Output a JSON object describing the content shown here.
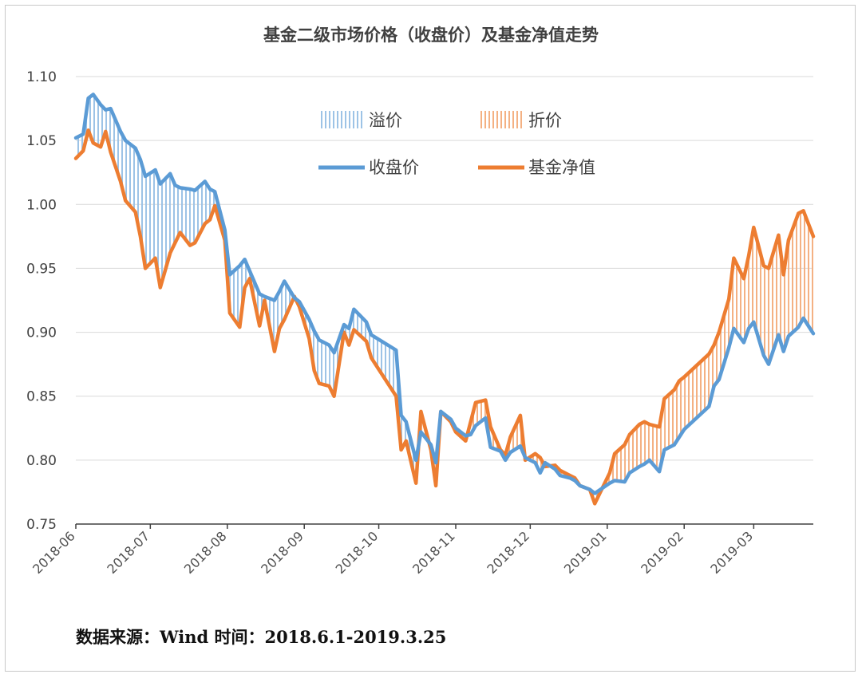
{
  "chart_data": {
    "type": "line",
    "title": "基金二级市场价格（收盘价）及基金净值走势",
    "ylim": [
      0.75,
      1.1
    ],
    "yticks": [
      "0.75",
      "0.80",
      "0.85",
      "0.90",
      "0.95",
      "1.00",
      "1.05",
      "1.10"
    ],
    "ytick_values": [
      0.75,
      0.8,
      0.85,
      0.9,
      0.95,
      1.0,
      1.05,
      1.1
    ],
    "xlim": [
      "2018-06-01",
      "2019-03-25"
    ],
    "xticks": [
      "2018-06",
      "2018-07",
      "2018-08",
      "2018-09",
      "2018-10",
      "2018-11",
      "2018-12",
      "2019-01",
      "2019-02",
      "2019-03"
    ],
    "xtick_dates": [
      "2018-06-01",
      "2018-07-01",
      "2018-08-01",
      "2018-09-01",
      "2018-10-01",
      "2018-11-01",
      "2018-12-01",
      "2019-01-01",
      "2019-02-01",
      "2019-03-01"
    ],
    "grid": "horizontal",
    "legend": {
      "position": "top-center",
      "premium_label": "溢价",
      "discount_label": "折价",
      "close_label": "收盘价",
      "nav_label": "基金净值"
    },
    "colors": {
      "close": "#5b9bd5",
      "nav": "#ed7d31",
      "premium_hatch": "#9dc3e6",
      "discount_hatch": "#f4b183"
    },
    "series": [
      {
        "name": "收盘价",
        "x": [
          "2018-06-01",
          "2018-06-04",
          "2018-06-06",
          "2018-06-08",
          "2018-06-11",
          "2018-06-13",
          "2018-06-15",
          "2018-06-19",
          "2018-06-21",
          "2018-06-25",
          "2018-06-27",
          "2018-06-29",
          "2018-07-03",
          "2018-07-05",
          "2018-07-09",
          "2018-07-11",
          "2018-07-13",
          "2018-07-17",
          "2018-07-19",
          "2018-07-23",
          "2018-07-25",
          "2018-07-27",
          "2018-07-31",
          "2018-08-02",
          "2018-08-06",
          "2018-08-08",
          "2018-08-10",
          "2018-08-14",
          "2018-08-16",
          "2018-08-20",
          "2018-08-22",
          "2018-08-24",
          "2018-08-28",
          "2018-08-30",
          "2018-09-03",
          "2018-09-05",
          "2018-09-07",
          "2018-09-11",
          "2018-09-13",
          "2018-09-17",
          "2018-09-19",
          "2018-09-21",
          "2018-09-26",
          "2018-09-28",
          "2018-10-08",
          "2018-10-10",
          "2018-10-12",
          "2018-10-16",
          "2018-10-18",
          "2018-10-22",
          "2018-10-24",
          "2018-10-26",
          "2018-10-30",
          "2018-11-01",
          "2018-11-05",
          "2018-11-07",
          "2018-11-09",
          "2018-11-13",
          "2018-11-15",
          "2018-11-19",
          "2018-11-21",
          "2018-11-23",
          "2018-11-27",
          "2018-11-29",
          "2018-12-03",
          "2018-12-05",
          "2018-12-07",
          "2018-12-11",
          "2018-12-13",
          "2018-12-17",
          "2018-12-19",
          "2018-12-21",
          "2018-12-25",
          "2018-12-27",
          "2019-01-02",
          "2019-01-04",
          "2019-01-08",
          "2019-01-10",
          "2019-01-14",
          "2019-01-16",
          "2019-01-18",
          "2019-01-22",
          "2019-01-24",
          "2019-01-28",
          "2019-01-30",
          "2019-02-01",
          "2019-02-11",
          "2019-02-13",
          "2019-02-15",
          "2019-02-19",
          "2019-02-21",
          "2019-02-25",
          "2019-02-27",
          "2019-03-01",
          "2019-03-05",
          "2019-03-07",
          "2019-03-11",
          "2019-03-13",
          "2019-03-15",
          "2019-03-19",
          "2019-03-21",
          "2019-03-25"
        ],
        "values": [
          1.052,
          1.055,
          1.083,
          1.086,
          1.078,
          1.074,
          1.075,
          1.057,
          1.05,
          1.044,
          1.035,
          1.022,
          1.027,
          1.016,
          1.024,
          1.015,
          1.013,
          1.012,
          1.011,
          1.018,
          1.012,
          1.01,
          0.98,
          0.945,
          0.952,
          0.957,
          0.948,
          0.93,
          0.928,
          0.925,
          0.932,
          0.94,
          0.927,
          0.924,
          0.91,
          0.901,
          0.894,
          0.89,
          0.884,
          0.906,
          0.903,
          0.918,
          0.908,
          0.898,
          0.886,
          0.835,
          0.83,
          0.8,
          0.822,
          0.812,
          0.798,
          0.838,
          0.832,
          0.825,
          0.819,
          0.82,
          0.827,
          0.833,
          0.81,
          0.807,
          0.8,
          0.806,
          0.811,
          0.802,
          0.798,
          0.79,
          0.798,
          0.793,
          0.788,
          0.786,
          0.784,
          0.78,
          0.777,
          0.774,
          0.782,
          0.784,
          0.783,
          0.79,
          0.795,
          0.797,
          0.8,
          0.791,
          0.808,
          0.812,
          0.818,
          0.824,
          0.842,
          0.858,
          0.863,
          0.888,
          0.903,
          0.892,
          0.903,
          0.908,
          0.882,
          0.875,
          0.898,
          0.885,
          0.897,
          0.904,
          0.911,
          0.899
        ]
      },
      {
        "name": "基金净值",
        "x": [
          "2018-06-01",
          "2018-06-04",
          "2018-06-06",
          "2018-06-08",
          "2018-06-11",
          "2018-06-13",
          "2018-06-15",
          "2018-06-19",
          "2018-06-21",
          "2018-06-25",
          "2018-06-27",
          "2018-06-29",
          "2018-07-03",
          "2018-07-05",
          "2018-07-09",
          "2018-07-11",
          "2018-07-13",
          "2018-07-17",
          "2018-07-19",
          "2018-07-23",
          "2018-07-25",
          "2018-07-27",
          "2018-07-31",
          "2018-08-02",
          "2018-08-06",
          "2018-08-08",
          "2018-08-10",
          "2018-08-14",
          "2018-08-16",
          "2018-08-20",
          "2018-08-22",
          "2018-08-24",
          "2018-08-28",
          "2018-08-30",
          "2018-09-03",
          "2018-09-05",
          "2018-09-07",
          "2018-09-11",
          "2018-09-13",
          "2018-09-17",
          "2018-09-19",
          "2018-09-21",
          "2018-09-26",
          "2018-09-28",
          "2018-10-08",
          "2018-10-10",
          "2018-10-12",
          "2018-10-16",
          "2018-10-18",
          "2018-10-22",
          "2018-10-24",
          "2018-10-26",
          "2018-10-30",
          "2018-11-01",
          "2018-11-05",
          "2018-11-07",
          "2018-11-09",
          "2018-11-13",
          "2018-11-15",
          "2018-11-19",
          "2018-11-21",
          "2018-11-23",
          "2018-11-27",
          "2018-11-29",
          "2018-12-03",
          "2018-12-05",
          "2018-12-07",
          "2018-12-11",
          "2018-12-13",
          "2018-12-17",
          "2018-12-19",
          "2018-12-21",
          "2018-12-25",
          "2018-12-27",
          "2019-01-02",
          "2019-01-04",
          "2019-01-08",
          "2019-01-10",
          "2019-01-14",
          "2019-01-16",
          "2019-01-18",
          "2019-01-22",
          "2019-01-24",
          "2019-01-28",
          "2019-01-30",
          "2019-02-01",
          "2019-02-11",
          "2019-02-13",
          "2019-02-15",
          "2019-02-19",
          "2019-02-21",
          "2019-02-25",
          "2019-02-27",
          "2019-03-01",
          "2019-03-05",
          "2019-03-07",
          "2019-03-11",
          "2019-03-13",
          "2019-03-15",
          "2019-03-19",
          "2019-03-21",
          "2019-03-25"
        ],
        "values": [
          1.036,
          1.042,
          1.058,
          1.048,
          1.045,
          1.057,
          1.041,
          1.018,
          1.003,
          0.994,
          0.975,
          0.95,
          0.958,
          0.935,
          0.962,
          0.97,
          0.978,
          0.968,
          0.97,
          0.985,
          0.988,
          0.999,
          0.972,
          0.915,
          0.904,
          0.935,
          0.942,
          0.905,
          0.925,
          0.885,
          0.903,
          0.91,
          0.928,
          0.92,
          0.895,
          0.87,
          0.86,
          0.858,
          0.85,
          0.9,
          0.89,
          0.902,
          0.893,
          0.88,
          0.85,
          0.808,
          0.815,
          0.782,
          0.838,
          0.808,
          0.78,
          0.838,
          0.83,
          0.822,
          0.815,
          0.83,
          0.845,
          0.847,
          0.826,
          0.808,
          0.804,
          0.818,
          0.835,
          0.8,
          0.805,
          0.802,
          0.795,
          0.796,
          0.792,
          0.788,
          0.786,
          0.78,
          0.777,
          0.766,
          0.79,
          0.805,
          0.812,
          0.82,
          0.828,
          0.83,
          0.828,
          0.826,
          0.848,
          0.855,
          0.862,
          0.865,
          0.883,
          0.89,
          0.9,
          0.926,
          0.958,
          0.942,
          0.96,
          0.982,
          0.952,
          0.95,
          0.976,
          0.945,
          0.972,
          0.993,
          0.995,
          0.975
        ]
      }
    ],
    "source_note": "数据来源：Wind 时间：2018.6.1-2019.3.25"
  }
}
